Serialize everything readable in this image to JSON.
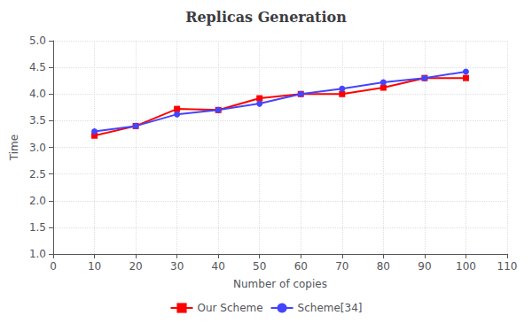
{
  "chart_data": {
    "type": "line",
    "title": "Replicas Generation",
    "xlabel": "Number of copies",
    "ylabel": "Time",
    "x": [
      10,
      20,
      30,
      40,
      50,
      60,
      70,
      80,
      90,
      100
    ],
    "series": [
      {
        "name": "Our Scheme",
        "color": "#ff0000",
        "marker": "square",
        "values": [
          3.22,
          3.4,
          3.72,
          3.7,
          3.92,
          4.0,
          4.0,
          4.12,
          4.3,
          4.3
        ]
      },
      {
        "name": "Scheme[34]",
        "color": "#4444ff",
        "marker": "circle",
        "values": [
          3.3,
          3.4,
          3.62,
          3.7,
          3.82,
          4.0,
          4.1,
          4.22,
          4.3,
          4.42
        ]
      }
    ],
    "xlim": [
      0,
      110
    ],
    "ylim": [
      1.0,
      5.0
    ],
    "xticks": [
      0,
      10,
      20,
      30,
      40,
      50,
      60,
      70,
      80,
      90,
      100,
      110
    ],
    "yticks": [
      {
        "value": 1.0,
        "label": "1.0"
      },
      1.5,
      {
        "value": 2.0,
        "label": "2.0"
      },
      2.5,
      {
        "value": 3.0,
        "label": "3.0"
      },
      3.5,
      {
        "value": 4.0,
        "label": "4.0"
      },
      4.5,
      {
        "value": 5.0,
        "label": "5.0"
      }
    ],
    "grid": true,
    "legend": "bottom"
  }
}
